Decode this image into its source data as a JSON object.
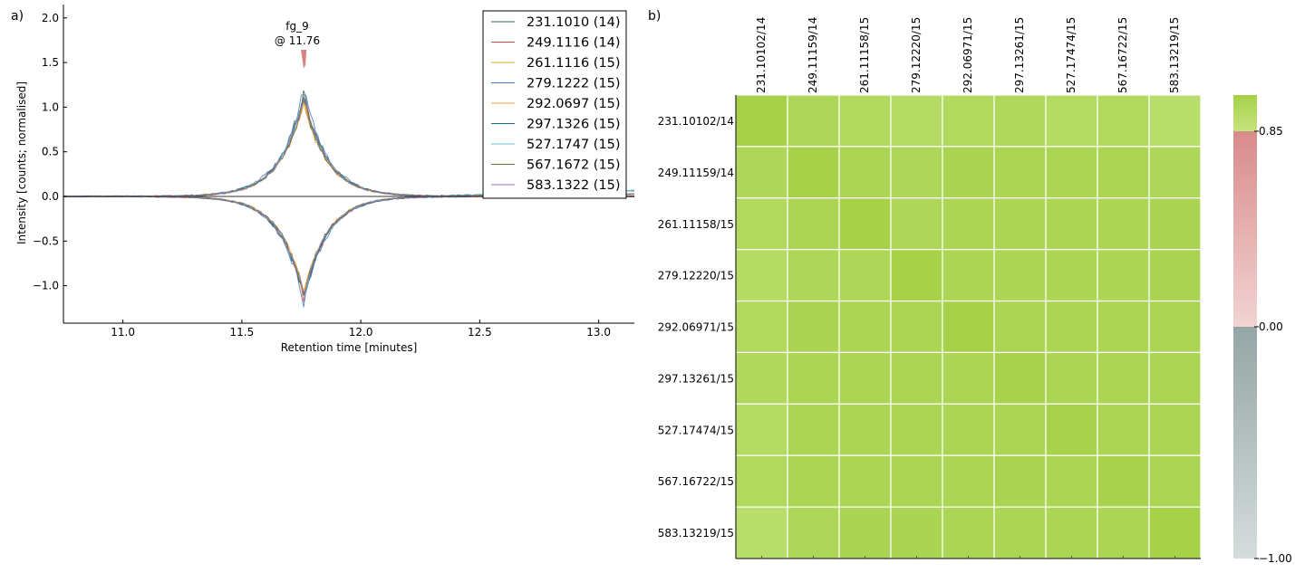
{
  "panels": {
    "a_label": "a)",
    "b_label": "b)"
  },
  "chart_data": [
    {
      "type": "line",
      "panel": "a)",
      "xlabel": "Retention time [minutes]",
      "ylabel": "Intensity [counts; normalised]",
      "xlim": [
        10.75,
        13.15
      ],
      "ylim": [
        -1.42,
        2.15
      ],
      "xticks": [
        11.0,
        11.5,
        12.0,
        12.5,
        13.0
      ],
      "xtick_labels": [
        "11.0",
        "11.5",
        "12.0",
        "12.5",
        "13.0"
      ],
      "yticks": [
        -1.0,
        -0.5,
        0.0,
        0.5,
        1.0,
        1.5,
        2.0
      ],
      "ytick_labels": [
        "−1.0",
        "−0.5",
        "0.0",
        "0.5",
        "1.0",
        "1.5",
        "2.0"
      ],
      "peak_center": 11.76,
      "peak_width_sigma": 0.1,
      "annotation": {
        "line1": "fg_9",
        "line2": "@ 11.76",
        "x": 11.76,
        "y": 1.15,
        "arrow_color": "#d98080"
      },
      "legend_position": "top-right",
      "series": [
        {
          "name": "231.1010 (14)",
          "color": "#2e6b3e",
          "peak": 1.15,
          "mirror_peak": -1.12
        },
        {
          "name": "249.1116 (14)",
          "color": "#d64a4a",
          "peak": 1.1,
          "mirror_peak": -1.15
        },
        {
          "name": "261.1116 (15)",
          "color": "#d8b21f",
          "peak": 1.08,
          "mirror_peak": -1.1
        },
        {
          "name": "279.1222 (15)",
          "color": "#4a7fc1",
          "peak": 1.2,
          "mirror_peak": -1.18
        },
        {
          "name": "292.0697 (15)",
          "color": "#f0a030",
          "peak": 1.05,
          "mirror_peak": -1.08
        },
        {
          "name": "297.1326 (15)",
          "color": "#1c6f8c",
          "peak": 1.12,
          "mirror_peak": -1.14
        },
        {
          "name": "527.1747 (15)",
          "color": "#5fc0c8",
          "peak": 1.1,
          "mirror_peak": -1.12
        },
        {
          "name": "567.1672 (15)",
          "color": "#6b6b3a",
          "peak": 1.08,
          "mirror_peak": -1.1
        },
        {
          "name": "583.1322 (15)",
          "color": "#9a6fb0",
          "peak": 1.1,
          "mirror_peak": -1.1
        }
      ]
    },
    {
      "type": "heatmap",
      "panel": "b)",
      "row_labels": [
        "231.10102/14",
        "249.11159/14",
        "261.11158/15",
        "279.12220/15",
        "292.06971/15",
        "297.13261/15",
        "527.17474/15",
        "567.16722/15",
        "583.13219/15"
      ],
      "col_labels": [
        "231.10102/14",
        "249.11159/14",
        "261.11158/15",
        "279.12220/15",
        "292.06971/15",
        "297.13261/15",
        "527.17474/15",
        "567.16722/15",
        "583.13219/15"
      ],
      "values": [
        [
          1.0,
          0.95,
          0.93,
          0.91,
          0.93,
          0.94,
          0.92,
          0.93,
          0.89
        ],
        [
          0.95,
          1.0,
          0.96,
          0.95,
          0.97,
          0.96,
          0.96,
          0.96,
          0.95
        ],
        [
          0.93,
          0.96,
          1.0,
          0.95,
          0.96,
          0.96,
          0.96,
          0.96,
          0.97
        ],
        [
          0.91,
          0.95,
          0.95,
          1.0,
          0.96,
          0.96,
          0.96,
          0.96,
          0.97
        ],
        [
          0.93,
          0.97,
          0.96,
          0.96,
          1.0,
          0.96,
          0.96,
          0.96,
          0.96
        ],
        [
          0.94,
          0.96,
          0.96,
          0.96,
          0.96,
          0.99,
          0.96,
          0.96,
          0.96
        ],
        [
          0.92,
          0.96,
          0.96,
          0.96,
          0.96,
          0.96,
          0.99,
          0.96,
          0.96
        ],
        [
          0.93,
          0.96,
          0.96,
          0.96,
          0.96,
          0.97,
          0.96,
          0.98,
          0.96
        ],
        [
          0.89,
          0.95,
          0.97,
          0.97,
          0.96,
          0.96,
          0.96,
          0.96,
          1.0
        ]
      ],
      "colorbar": {
        "ticks": [
          0.85,
          0.0,
          -1.0
        ],
        "tick_labels": [
          "0.85",
          "0.00",
          "−1.00"
        ],
        "colors": {
          "high_top": "#a6d149",
          "high_bottom": "#c7e37e",
          "mid_top": "#d98b8b",
          "mid_bottom": "#f2d3d3",
          "low_top": "#95a5a5",
          "low_bottom": "#d5dcdc"
        }
      },
      "cell_colors": {
        "strong": "#a6d149",
        "light": "#b8dd6a"
      }
    }
  ]
}
